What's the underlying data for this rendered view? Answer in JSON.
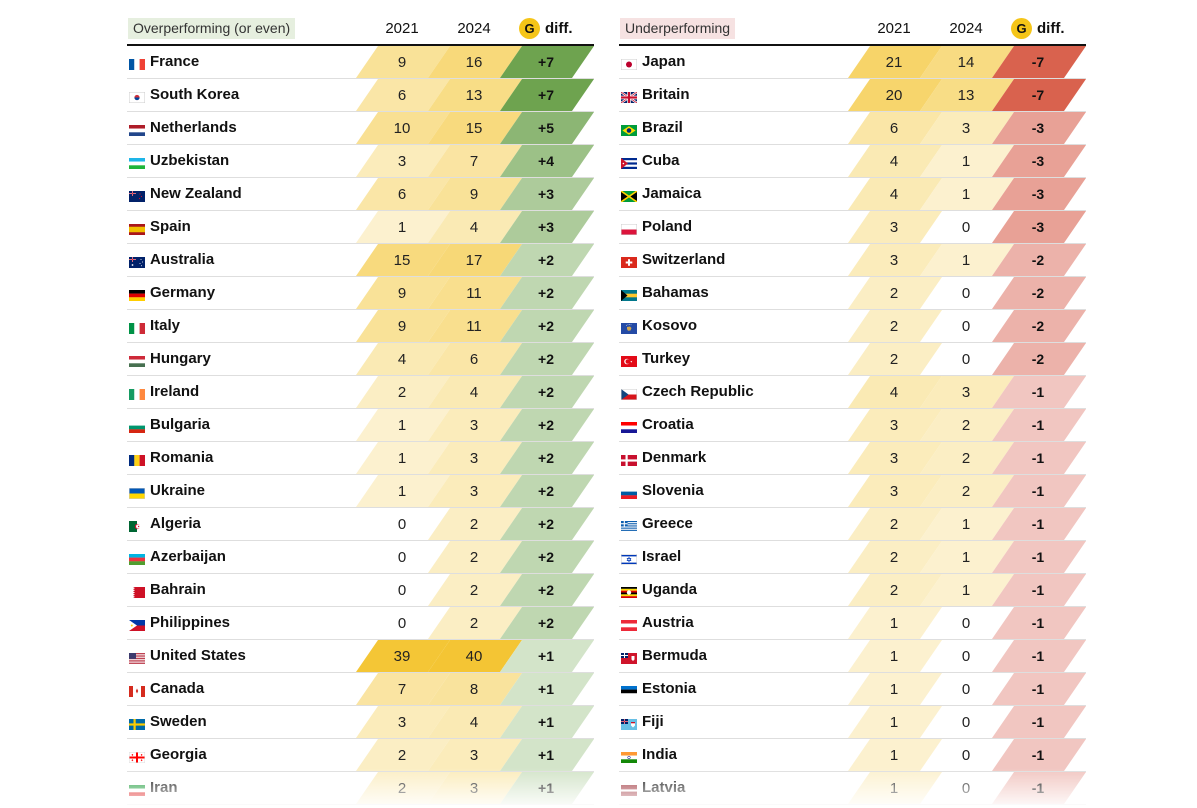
{
  "chart_data": [
    {
      "type": "table",
      "title": "Overperforming (or even)",
      "columns": [
        "2021",
        "2024",
        "diff."
      ],
      "rows": [
        {
          "country": "France",
          "v2021": 9,
          "v2024": 16,
          "diff": "+7"
        },
        {
          "country": "South Korea",
          "v2021": 6,
          "v2024": 13,
          "diff": "+7"
        },
        {
          "country": "Netherlands",
          "v2021": 10,
          "v2024": 15,
          "diff": "+5"
        },
        {
          "country": "Uzbekistan",
          "v2021": 3,
          "v2024": 7,
          "diff": "+4"
        },
        {
          "country": "New Zealand",
          "v2021": 6,
          "v2024": 9,
          "diff": "+3"
        },
        {
          "country": "Spain",
          "v2021": 1,
          "v2024": 4,
          "diff": "+3"
        },
        {
          "country": "Australia",
          "v2021": 15,
          "v2024": 17,
          "diff": "+2"
        },
        {
          "country": "Germany",
          "v2021": 9,
          "v2024": 11,
          "diff": "+2"
        },
        {
          "country": "Italy",
          "v2021": 9,
          "v2024": 11,
          "diff": "+2"
        },
        {
          "country": "Hungary",
          "v2021": 4,
          "v2024": 6,
          "diff": "+2"
        },
        {
          "country": "Ireland",
          "v2021": 2,
          "v2024": 4,
          "diff": "+2"
        },
        {
          "country": "Bulgaria",
          "v2021": 1,
          "v2024": 3,
          "diff": "+2"
        },
        {
          "country": "Romania",
          "v2021": 1,
          "v2024": 3,
          "diff": "+2"
        },
        {
          "country": "Ukraine",
          "v2021": 1,
          "v2024": 3,
          "diff": "+2"
        },
        {
          "country": "Algeria",
          "v2021": 0,
          "v2024": 2,
          "diff": "+2"
        },
        {
          "country": "Azerbaijan",
          "v2021": 0,
          "v2024": 2,
          "diff": "+2"
        },
        {
          "country": "Bahrain",
          "v2021": 0,
          "v2024": 2,
          "diff": "+2"
        },
        {
          "country": "Philippines",
          "v2021": 0,
          "v2024": 2,
          "diff": "+2"
        },
        {
          "country": "United States",
          "v2021": 39,
          "v2024": 40,
          "diff": "+1"
        },
        {
          "country": "Canada",
          "v2021": 7,
          "v2024": 8,
          "diff": "+1"
        },
        {
          "country": "Sweden",
          "v2021": 3,
          "v2024": 4,
          "diff": "+1"
        },
        {
          "country": "Georgia",
          "v2021": 2,
          "v2024": 3,
          "diff": "+1"
        },
        {
          "country": "Iran",
          "v2021": 2,
          "v2024": 3,
          "diff": "+1"
        }
      ]
    },
    {
      "type": "table",
      "title": "Underperforming",
      "columns": [
        "2021",
        "2024",
        "diff."
      ],
      "rows": [
        {
          "country": "Japan",
          "v2021": 21,
          "v2024": 14,
          "diff": "-7"
        },
        {
          "country": "Britain",
          "v2021": 20,
          "v2024": 13,
          "diff": "-7"
        },
        {
          "country": "Brazil",
          "v2021": 6,
          "v2024": 3,
          "diff": "-3"
        },
        {
          "country": "Cuba",
          "v2021": 4,
          "v2024": 1,
          "diff": "-3"
        },
        {
          "country": "Jamaica",
          "v2021": 4,
          "v2024": 1,
          "diff": "-3"
        },
        {
          "country": "Poland",
          "v2021": 3,
          "v2024": 0,
          "diff": "-3"
        },
        {
          "country": "Switzerland",
          "v2021": 3,
          "v2024": 1,
          "diff": "-2"
        },
        {
          "country": "Bahamas",
          "v2021": 2,
          "v2024": 0,
          "diff": "-2"
        },
        {
          "country": "Kosovo",
          "v2021": 2,
          "v2024": 0,
          "diff": "-2"
        },
        {
          "country": "Turkey",
          "v2021": 2,
          "v2024": 0,
          "diff": "-2"
        },
        {
          "country": "Czech Republic",
          "v2021": 4,
          "v2024": 3,
          "diff": "-1"
        },
        {
          "country": "Croatia",
          "v2021": 3,
          "v2024": 2,
          "diff": "-1"
        },
        {
          "country": "Denmark",
          "v2021": 3,
          "v2024": 2,
          "diff": "-1"
        },
        {
          "country": "Slovenia",
          "v2021": 3,
          "v2024": 2,
          "diff": "-1"
        },
        {
          "country": "Greece",
          "v2021": 2,
          "v2024": 1,
          "diff": "-1"
        },
        {
          "country": "Israel",
          "v2021": 2,
          "v2024": 1,
          "diff": "-1"
        },
        {
          "country": "Uganda",
          "v2021": 2,
          "v2024": 1,
          "diff": "-1"
        },
        {
          "country": "Austria",
          "v2021": 1,
          "v2024": 0,
          "diff": "-1"
        },
        {
          "country": "Bermuda",
          "v2021": 1,
          "v2024": 0,
          "diff": "-1"
        },
        {
          "country": "Estonia",
          "v2021": 1,
          "v2024": 0,
          "diff": "-1"
        },
        {
          "country": "Fiji",
          "v2021": 1,
          "v2024": 0,
          "diff": "-1"
        },
        {
          "country": "India",
          "v2021": 1,
          "v2024": 0,
          "diff": "-1"
        },
        {
          "country": "Latvia",
          "v2021": 1,
          "v2024": 0,
          "diff": "-1"
        }
      ]
    }
  ],
  "header": {
    "left_label": "Overperforming (or even)",
    "right_label": "Underperforming",
    "year_a": "2021",
    "year_b": "2024",
    "gold_icon_letter": "G",
    "diff_label": "diff."
  },
  "colors": {
    "gold_icon": "#f5c518",
    "medal_scale_low": "#fdf8e6",
    "medal_scale_high": "#f4c534",
    "positive_strong": "#6ea34f",
    "positive_light": "#eef5ea",
    "negative_strong": "#d9624e",
    "negative_light": "#f7e1e0",
    "left_label_bg": "#e6efdf",
    "right_label_bg": "#f6e2e2"
  },
  "flags": {
    "France": [
      "v",
      "#0055a4",
      "#ffffff",
      "#ef4135"
    ],
    "South Korea": [
      "korea"
    ],
    "Netherlands": [
      "h",
      "#ae1c28",
      "#ffffff",
      "#21468b"
    ],
    "Uzbekistan": [
      "h",
      "#1eb5e8",
      "#ffffff",
      "#1eb53a"
    ],
    "New Zealand": [
      "nz"
    ],
    "Spain": [
      "h3",
      "#aa151b",
      "#f1bf00",
      "#aa151b"
    ],
    "Australia": [
      "au"
    ],
    "Germany": [
      "h",
      "#000000",
      "#dd0000",
      "#ffce00"
    ],
    "Italy": [
      "v",
      "#009246",
      "#ffffff",
      "#ce2b37"
    ],
    "Hungary": [
      "h",
      "#ce2939",
      "#ffffff",
      "#477050"
    ],
    "Ireland": [
      "v",
      "#169b62",
      "#ffffff",
      "#ff883e"
    ],
    "Bulgaria": [
      "h",
      "#ffffff",
      "#00966e",
      "#d62612"
    ],
    "Romania": [
      "v",
      "#002b7f",
      "#fcd116",
      "#ce1126"
    ],
    "Ukraine": [
      "h2",
      "#0057b7",
      "#ffd700"
    ],
    "Algeria": [
      "algeria"
    ],
    "Azerbaijan": [
      "h",
      "#00b5e2",
      "#ef3340",
      "#509e2f"
    ],
    "Bahrain": [
      "bahrain"
    ],
    "Philippines": [
      "philippines"
    ],
    "United States": [
      "usa"
    ],
    "Canada": [
      "v4",
      "#d52b1e",
      "#ffffff",
      "#d52b1e"
    ],
    "Sweden": [
      "cross",
      "#006aa7",
      "#fecc00"
    ],
    "Georgia": [
      "georgia"
    ],
    "Iran": [
      "h",
      "#239f40",
      "#ffffff",
      "#da0000"
    ],
    "Japan": [
      "japan"
    ],
    "Britain": [
      "uk"
    ],
    "Brazil": [
      "brazil"
    ],
    "Cuba": [
      "cuba"
    ],
    "Jamaica": [
      "jamaica"
    ],
    "Poland": [
      "h2",
      "#ffffff",
      "#dc143c"
    ],
    "Switzerland": [
      "swiss"
    ],
    "Bahamas": [
      "bahamas"
    ],
    "Kosovo": [
      "kosovo"
    ],
    "Turkey": [
      "turkey"
    ],
    "Czech Republic": [
      "czech"
    ],
    "Croatia": [
      "h",
      "#ff0000",
      "#ffffff",
      "#171796"
    ],
    "Denmark": [
      "cross",
      "#c8102e",
      "#ffffff"
    ],
    "Slovenia": [
      "h",
      "#ffffff",
      "#005da4",
      "#ed1c24"
    ],
    "Greece": [
      "greece"
    ],
    "Israel": [
      "israel"
    ],
    "Uganda": [
      "uganda"
    ],
    "Austria": [
      "h",
      "#ed2939",
      "#ffffff",
      "#ed2939"
    ],
    "Bermuda": [
      "bermuda"
    ],
    "Estonia": [
      "h",
      "#0072ce",
      "#000000",
      "#ffffff"
    ],
    "Fiji": [
      "fiji"
    ],
    "India": [
      "india"
    ],
    "Latvia": [
      "latvia"
    ]
  }
}
